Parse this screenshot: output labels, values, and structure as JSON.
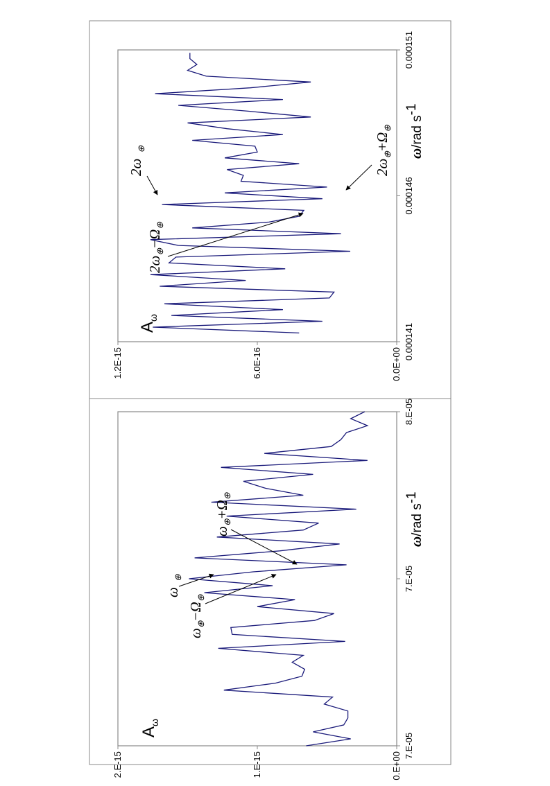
{
  "chart_data": [
    {
      "type": "line",
      "panel": "lower",
      "amplitude_label": {
        "main": "A",
        "sub": "ω"
      },
      "xlabel": {
        "symbol": "ω",
        "unit": "/rad s",
        "exponent": "-1"
      },
      "x_ticks": [
        "7.E-05",
        "7.E-05",
        "8.E-05"
      ],
      "y_ticks": [
        "0.E+00",
        "1.E-15",
        "2.E-15"
      ],
      "xlim": [
        6.6e-05,
        7.8e-05
      ],
      "ylim": [
        0,
        2e-15
      ],
      "color": "#1a1a7a",
      "series": [
        {
          "x": [
            6.6e-05,
            6.625e-05,
            6.65e-05,
            6.675e-05,
            6.7e-05,
            6.725e-05,
            6.75e-05,
            6.775e-05,
            6.8e-05,
            6.825e-05,
            6.85e-05,
            6.875e-05,
            6.9e-05,
            6.925e-05,
            6.95e-05,
            6.975e-05,
            7e-05,
            7.025e-05,
            7.05e-05,
            7.075e-05,
            7.1e-05,
            7.125e-05,
            7.15e-05,
            7.175e-05,
            7.2e-05,
            7.225e-05,
            7.25e-05,
            7.275e-05,
            7.3e-05,
            7.325e-05,
            7.35e-05,
            7.375e-05,
            7.4e-05,
            7.425e-05,
            7.45e-05,
            7.475e-05,
            7.5e-05,
            7.525e-05,
            7.55e-05,
            7.575e-05,
            7.6e-05,
            7.625e-05,
            7.65e-05,
            7.675e-05,
            7.7e-05,
            7.725e-05,
            7.75e-05,
            7.775e-05,
            7.8e-05
          ],
          "values": [
            6.5e-16,
            3.3e-16,
            6e-16,
            3.8e-16,
            3.5e-16,
            3.5e-16,
            5.2e-16,
            4.6e-16,
            1.24e-15,
            8.7e-16,
            6.8e-16,
            6.6e-16,
            7.5e-16,
            6.7e-16,
            1.28e-15,
            3.7e-16,
            1.18e-15,
            1.19e-15,
            5.9e-16,
            4.5e-16,
            1e-15,
            7.3e-16,
            1.38e-15,
            8.9e-16,
            1.49e-15,
            1.03e-15,
            3.6e-16,
            1.45e-15,
            8.4e-16,
            4.1e-16,
            1.29e-15,
            6.7e-16,
            5.6e-16,
            1.22e-15,
            2.9e-16,
            1.33e-15,
            6.7e-16,
            9.4e-16,
            1.1e-15,
            6e-16,
            1.26e-15,
            2.1e-16,
            9.5e-16,
            4.7e-16,
            4e-16,
            3.6e-16,
            2.1e-16,
            3.3e-16,
            2.3e-16
          ]
        }
      ],
      "annotations": [
        {
          "text_main": "ω",
          "text_sub": "⊕",
          "text_rest": "−",
          "text_tail": "Ω",
          "text_tail_sub": "⊕",
          "id": "omega-minus"
        },
        {
          "text_main": "ω",
          "text_sub": "⊕",
          "text_rest": "",
          "text_tail": "",
          "text_tail_sub": "",
          "id": "omega"
        },
        {
          "text_main": "ω",
          "text_sub": "⊕",
          "text_rest": "+",
          "text_tail": "Ω",
          "text_tail_sub": "⊕",
          "id": "omega-plus"
        }
      ]
    },
    {
      "type": "line",
      "panel": "upper",
      "amplitude_label": {
        "main": "A",
        "sub": "ω"
      },
      "xlabel": {
        "symbol": "ω",
        "unit": "/rad s",
        "exponent": "-1"
      },
      "x_ticks": [
        "0.000141",
        "0.000146",
        "0.000151"
      ],
      "y_ticks": [
        "0.0E+00",
        "6.0E-16",
        "1.2E-15"
      ],
      "xlim": [
        0.000141,
        0.000151
      ],
      "ylim": [
        0,
        1.2e-15
      ],
      "color": "#1a1a7a",
      "series": [
        {
          "x": [
            0.0001413,
            0.0001415,
            0.0001417,
            0.0001419,
            0.0001421,
            0.0001423,
            0.0001425,
            0.0001427,
            0.0001429,
            0.0001431,
            0.0001433,
            0.0001435,
            0.0001437,
            0.0001439,
            0.0001441,
            0.0001443,
            0.0001445,
            0.0001447,
            0.0001449,
            0.0001451,
            0.0001453,
            0.0001455,
            0.0001457,
            0.0001459,
            0.0001461,
            0.0001463,
            0.0001465,
            0.0001467,
            0.0001469,
            0.0001471,
            0.0001473,
            0.0001475,
            0.0001477,
            0.0001479,
            0.0001481,
            0.0001483,
            0.0001485,
            0.0001487,
            0.0001489,
            0.0001491,
            0.0001493,
            0.0001495,
            0.0001497,
            0.0001499,
            0.0001501,
            0.0001503,
            0.0001505,
            0.0001507,
            0.0001509
          ],
          "values": [
            4.2e-16,
            1.05e-15,
            3.2e-16,
            9.7e-16,
            4.9e-16,
            1e-15,
            2.9e-16,
            2.7e-16,
            1.02e-15,
            6.5e-16,
            1.06e-15,
            4.8e-16,
            9.8e-16,
            9.5e-16,
            2e-16,
            9.4e-16,
            1.06e-15,
            2.4e-16,
            8.8e-16,
            5.5e-16,
            4.2e-16,
            4e-16,
            1.01e-15,
            3.2e-16,
            7.4e-16,
            3e-16,
            6.7e-16,
            6.6e-16,
            7.3e-16,
            4.2e-16,
            7.4e-16,
            6e-16,
            6.1e-16,
            8.8e-16,
            4.9e-16,
            7.3e-16,
            9e-16,
            3.7e-16,
            6.4e-16,
            9.4e-16,
            4.9e-16,
            1.04e-15,
            6.3e-16,
            3.7e-16,
            8.2e-16,
            9e-16,
            8.6e-16,
            8.9e-16,
            8.9e-16
          ]
        }
      ],
      "annotations": [
        {
          "text_main": "2ω",
          "text_sub": "⊕",
          "text_rest": "−",
          "text_tail": "Ω",
          "text_tail_sub": "⊕",
          "id": "two-omega-minus"
        },
        {
          "text_main": "2ω",
          "text_sub": "⊕",
          "text_rest": "",
          "text_tail": "",
          "text_tail_sub": "",
          "id": "two-omega"
        },
        {
          "text_main": "2ω",
          "text_sub": "⊕",
          "text_rest": "+",
          "text_tail": "Ω",
          "text_tail_sub": "⊕",
          "id": "two-omega-plus"
        }
      ]
    }
  ]
}
